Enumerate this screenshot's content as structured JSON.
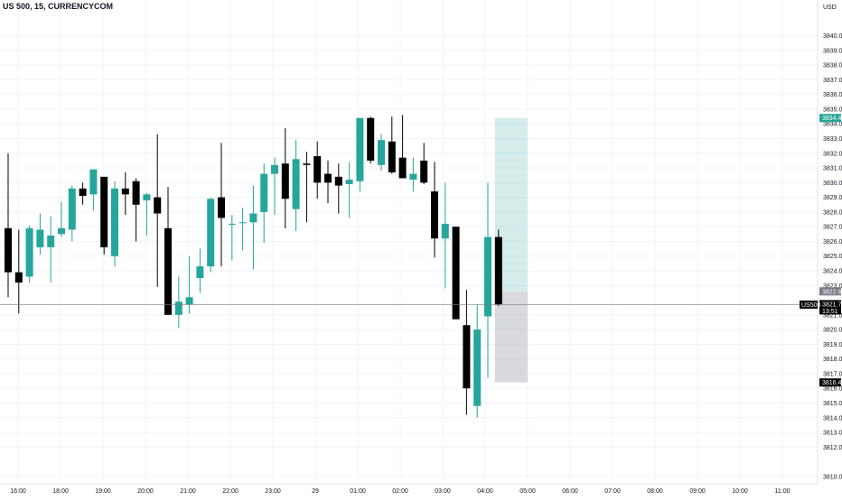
{
  "chart_data": {
    "type": "candlestick",
    "title": "US 500, 15, CURRENCYCOM",
    "currency": "USD",
    "symbol_tag": "US500",
    "last_price": "3821.7",
    "countdown": "13:51",
    "position_marks": {
      "target": "3834.4",
      "entry": "3822.6",
      "stop": "3816.4"
    },
    "ylim": [
      3809.5,
      3842.0
    ],
    "yticks": [
      "3810.0",
      "3812.0",
      "3813.0",
      "3814.0",
      "3815.0",
      "3816.0",
      "3817.0",
      "3818.0",
      "3819.0",
      "3820.0",
      "3821.0",
      "3823.0",
      "3824.0",
      "3825.0",
      "3826.0",
      "3827.0",
      "3828.0",
      "3829.0",
      "3830.0",
      "3831.0",
      "3832.0",
      "3833.0",
      "3834.0",
      "3835.0",
      "3836.0",
      "3837.0",
      "3838.0",
      "3839.0",
      "3840.0"
    ],
    "xticks": [
      "16:00",
      "18:00",
      "19:00",
      "20:00",
      "21:00",
      "22:00",
      "23:00",
      "29",
      "01:00",
      "02:00",
      "03:00",
      "04:00",
      "05:00",
      "06:00",
      "07:00",
      "08:00",
      "09:00",
      "10:00",
      "11:00"
    ],
    "candles": [
      {
        "o": 3826.9,
        "h": 3832.0,
        "l": 3822.2,
        "c": 3823.9
      },
      {
        "o": 3823.9,
        "h": 3826.8,
        "l": 3821.1,
        "c": 3823.2
      },
      {
        "o": 3823.6,
        "h": 3827.1,
        "l": 3823.2,
        "c": 3826.9
      },
      {
        "o": 3825.6,
        "h": 3827.9,
        "l": 3825.1,
        "c": 3826.8
      },
      {
        "o": 3825.6,
        "h": 3827.7,
        "l": 3823.2,
        "c": 3826.4
      },
      {
        "o": 3826.5,
        "h": 3828.7,
        "l": 3826.3,
        "c": 3826.9
      },
      {
        "o": 3826.8,
        "h": 3829.8,
        "l": 3826.0,
        "c": 3829.6
      },
      {
        "o": 3829.6,
        "h": 3830.0,
        "l": 3828.5,
        "c": 3829.1
      },
      {
        "o": 3829.2,
        "h": 3830.8,
        "l": 3828.1,
        "c": 3830.9
      },
      {
        "o": 3830.4,
        "h": 3830.3,
        "l": 3825.1,
        "c": 3825.6
      },
      {
        "o": 3825.0,
        "h": 3830.1,
        "l": 3824.3,
        "c": 3829.6
      },
      {
        "o": 3829.6,
        "h": 3830.7,
        "l": 3827.8,
        "c": 3829.2
      },
      {
        "o": 3830.1,
        "h": 3830.3,
        "l": 3826.0,
        "c": 3828.5
      },
      {
        "o": 3828.8,
        "h": 3829.3,
        "l": 3826.4,
        "c": 3829.2
      },
      {
        "o": 3829.0,
        "h": 3833.3,
        "l": 3822.9,
        "c": 3827.9
      },
      {
        "o": 3826.9,
        "h": 3829.7,
        "l": 3821.1,
        "c": 3821.0
      },
      {
        "o": 3821.0,
        "h": 3823.6,
        "l": 3820.1,
        "c": 3821.9
      },
      {
        "o": 3821.7,
        "h": 3825.0,
        "l": 3821.1,
        "c": 3822.2
      },
      {
        "o": 3823.5,
        "h": 3825.5,
        "l": 3822.5,
        "c": 3824.3
      },
      {
        "o": 3824.3,
        "h": 3829.0,
        "l": 3823.9,
        "c": 3828.9
      },
      {
        "o": 3829.0,
        "h": 3832.7,
        "l": 3824.3,
        "c": 3827.6
      },
      {
        "o": 3827.2,
        "h": 3827.8,
        "l": 3824.7,
        "c": 3827.2
      },
      {
        "o": 3827.3,
        "h": 3828.3,
        "l": 3825.4,
        "c": 3827.3
      },
      {
        "o": 3827.3,
        "h": 3829.8,
        "l": 3824.1,
        "c": 3827.9
      },
      {
        "o": 3828.0,
        "h": 3831.3,
        "l": 3825.9,
        "c": 3830.6
      },
      {
        "o": 3830.6,
        "h": 3831.7,
        "l": 3827.8,
        "c": 3831.2
      },
      {
        "o": 3831.3,
        "h": 3833.7,
        "l": 3826.9,
        "c": 3828.9
      },
      {
        "o": 3828.2,
        "h": 3832.9,
        "l": 3826.7,
        "c": 3831.6
      },
      {
        "o": 3831.3,
        "h": 3832.1,
        "l": 3827.3,
        "c": 3831.2
      },
      {
        "o": 3831.8,
        "h": 3832.8,
        "l": 3828.9,
        "c": 3830.0
      },
      {
        "o": 3830.6,
        "h": 3831.5,
        "l": 3828.6,
        "c": 3830.0
      },
      {
        "o": 3830.4,
        "h": 3831.3,
        "l": 3827.9,
        "c": 3829.8
      },
      {
        "o": 3829.9,
        "h": 3831.4,
        "l": 3827.6,
        "c": 3830.2
      },
      {
        "o": 3830.1,
        "h": 3834.4,
        "l": 3829.4,
        "c": 3834.4
      },
      {
        "o": 3834.4,
        "h": 3834.5,
        "l": 3831.3,
        "c": 3831.5
      },
      {
        "o": 3831.2,
        "h": 3833.3,
        "l": 3830.8,
        "c": 3832.9
      },
      {
        "o": 3832.8,
        "h": 3834.5,
        "l": 3830.6,
        "c": 3830.7
      },
      {
        "o": 3831.7,
        "h": 3834.6,
        "l": 3830.4,
        "c": 3830.3
      },
      {
        "o": 3830.2,
        "h": 3831.7,
        "l": 3829.4,
        "c": 3830.6
      },
      {
        "o": 3831.5,
        "h": 3832.7,
        "l": 3829.9,
        "c": 3830.0
      },
      {
        "o": 3829.4,
        "h": 3831.4,
        "l": 3824.9,
        "c": 3826.2
      },
      {
        "o": 3826.2,
        "h": 3830.0,
        "l": 3822.8,
        "c": 3827.2
      },
      {
        "o": 3827.0,
        "h": 3827.0,
        "l": 3821.0,
        "c": 3820.7
      },
      {
        "o": 3820.3,
        "h": 3822.7,
        "l": 3814.2,
        "c": 3816.0
      },
      {
        "o": 3814.8,
        "h": 3821.7,
        "l": 3814.0,
        "c": 3820.0
      },
      {
        "o": 3820.9,
        "h": 3830.0,
        "l": 3816.7,
        "c": 3826.3
      },
      {
        "o": 3826.3,
        "h": 3826.8,
        "l": 3821.6,
        "c": 3821.7
      }
    ]
  }
}
